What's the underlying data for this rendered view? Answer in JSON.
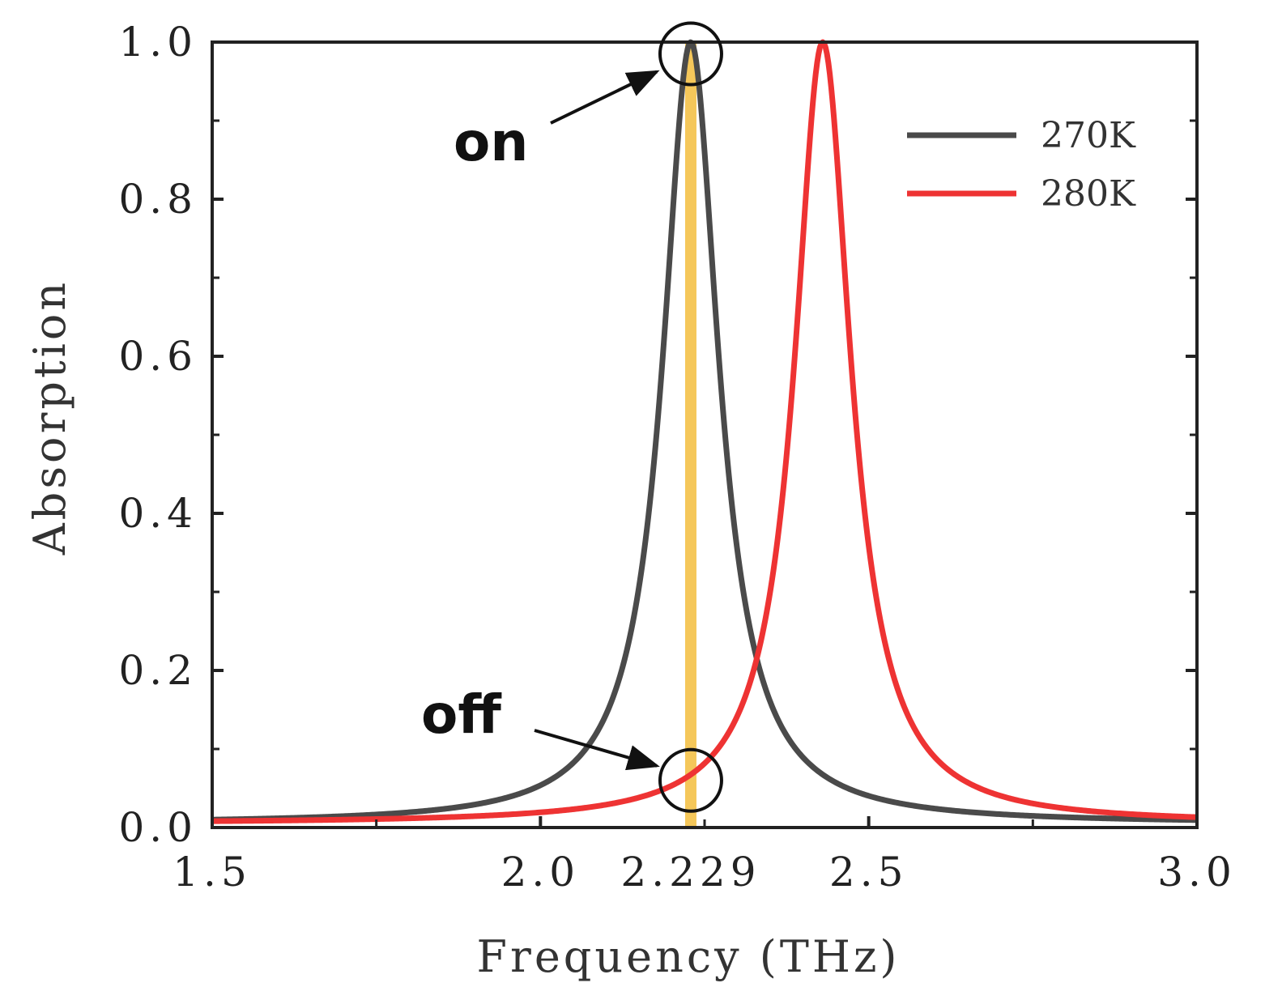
{
  "chart_data": {
    "type": "line",
    "xlabel": "Frequency (THz)",
    "ylabel": "Absorption",
    "xlim": [
      1.5,
      3.0
    ],
    "ylim": [
      0.0,
      1.0
    ],
    "x_ticks": [
      1.5,
      2.0,
      2.229,
      2.5,
      3.0
    ],
    "x_tick_labels": [
      "1.5",
      "2.0",
      "2.229",
      "2.5",
      "3.0"
    ],
    "y_ticks": [
      0.0,
      0.2,
      0.4,
      0.6,
      0.8,
      1.0
    ],
    "y_tick_labels": [
      "0.0",
      "0.2",
      "0.4",
      "0.6",
      "0.8",
      "1.0"
    ],
    "grid": false,
    "legend_position": "top-right",
    "series": [
      {
        "name": "270K",
        "color": "#4a4a4a",
        "peak_x": 2.229,
        "peak_y": 1.0,
        "half_width_thz": 0.052,
        "baseline": 0.005
      },
      {
        "name": "280K",
        "color": "#ee3333",
        "peak_x": 2.43,
        "peak_y": 1.0,
        "half_width_thz": 0.052,
        "baseline": 0.005
      }
    ],
    "marker_line": {
      "x": 2.229,
      "color": "#f5c75a"
    },
    "annotations": [
      {
        "text": "on",
        "target_x": 2.229,
        "target_y": 0.985
      },
      {
        "text": "off",
        "target_x": 2.229,
        "target_y": 0.06
      }
    ]
  }
}
